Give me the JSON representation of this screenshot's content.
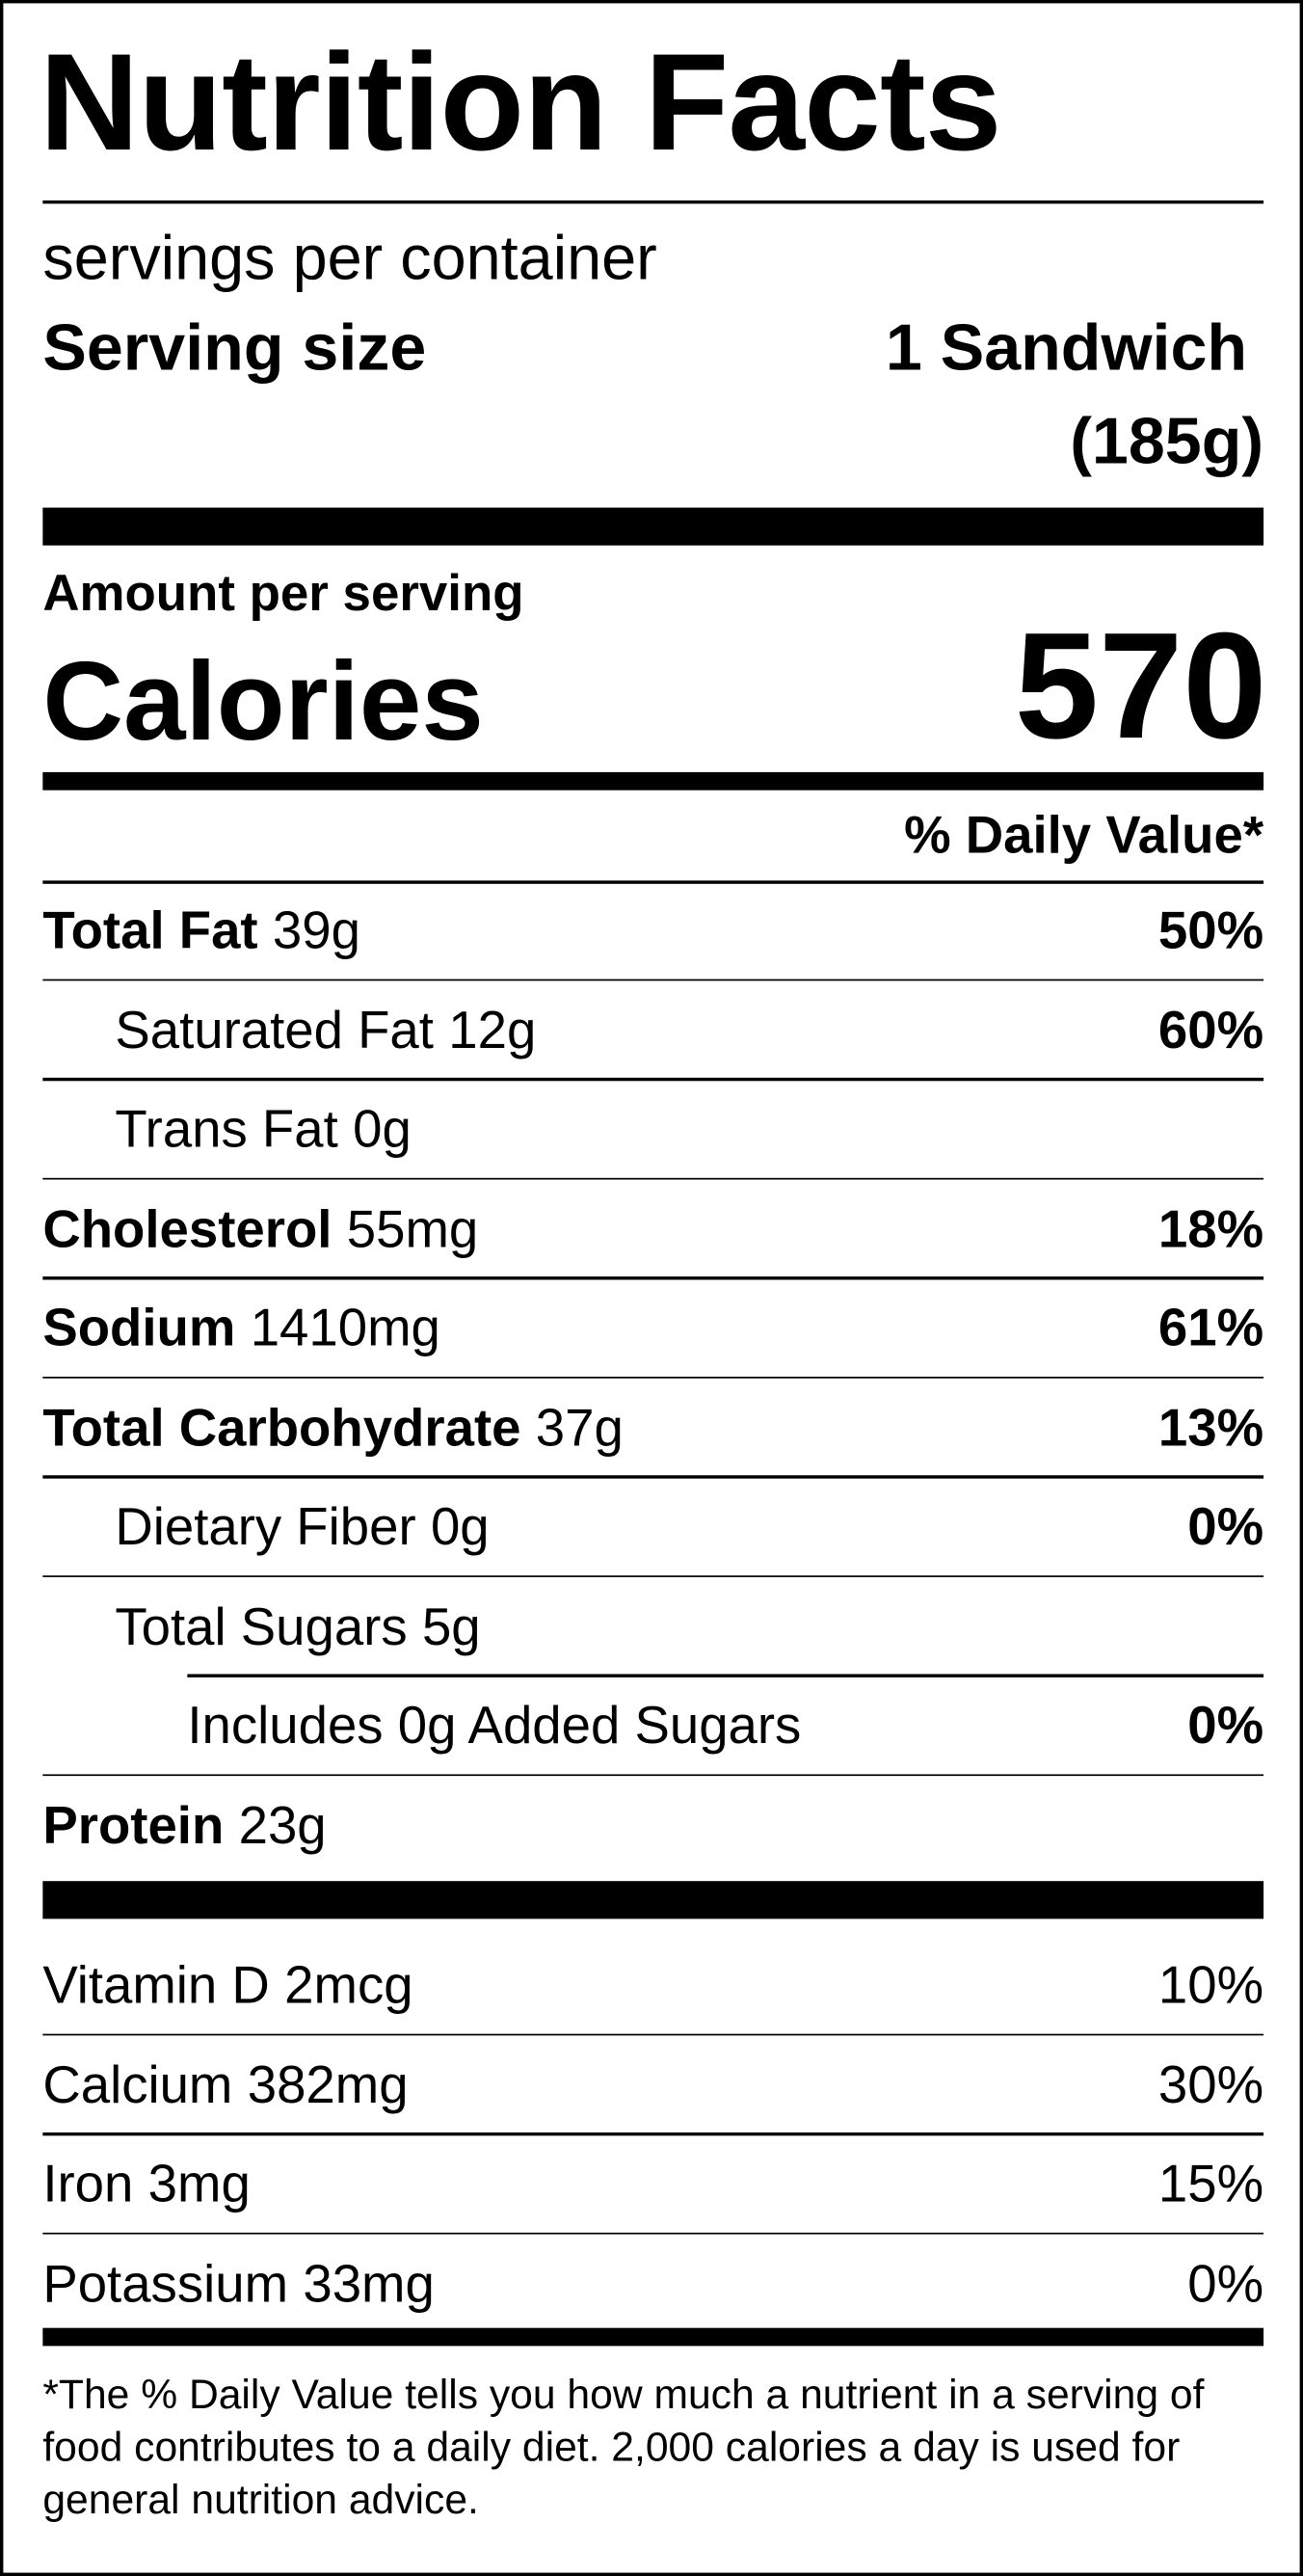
{
  "title": "Nutrition Facts",
  "servings_per_container": "servings per container",
  "serving_size": {
    "label": "Serving size",
    "amount": "1 Sandwich",
    "weight": "(185g)"
  },
  "amount_per_serving": "Amount per serving",
  "calories": {
    "label": "Calories",
    "value": 570
  },
  "daily_value_header": "% Daily Value*",
  "nutrients": [
    {
      "name": "Total Fat",
      "amount": "39g",
      "daily_value": "50%",
      "level": 0
    },
    {
      "name": "Saturated Fat",
      "amount": "12g",
      "daily_value": "60%",
      "level": 1
    },
    {
      "name": "Trans Fat",
      "amount": "0g",
      "level": 1
    },
    {
      "name": "Cholesterol",
      "amount": "55mg",
      "daily_value": "18%",
      "level": 0
    },
    {
      "name": "Sodium",
      "amount": "1410mg",
      "daily_value": "61%",
      "level": 0
    },
    {
      "name": "Total Carbohydrate",
      "amount": "37g",
      "daily_value": "13%",
      "level": 0
    },
    {
      "name": "Dietary Fiber",
      "amount": "0g",
      "daily_value": "0%",
      "level": 1
    },
    {
      "name": "Total Sugars",
      "amount": "5g",
      "level": 1
    },
    {
      "name": "Includes 0g Added Sugars",
      "daily_value": "0%",
      "level": 2
    },
    {
      "name": "Protein",
      "amount": "23g",
      "level": 0
    }
  ],
  "vitamins": [
    {
      "name": "Vitamin D",
      "amount": "2mcg",
      "daily_value": "10%"
    },
    {
      "name": "Calcium",
      "amount": "382mg",
      "daily_value": "30%"
    },
    {
      "name": "Iron",
      "amount": "3mg",
      "daily_value": "15%"
    },
    {
      "name": "Potassium",
      "amount": "33mg",
      "daily_value": "0%"
    }
  ],
  "footnote": "*The % Daily Value tells you how much a nutrient in a serving of food contributes to a daily diet. 2,000 calories a day is used for general nutrition advice."
}
